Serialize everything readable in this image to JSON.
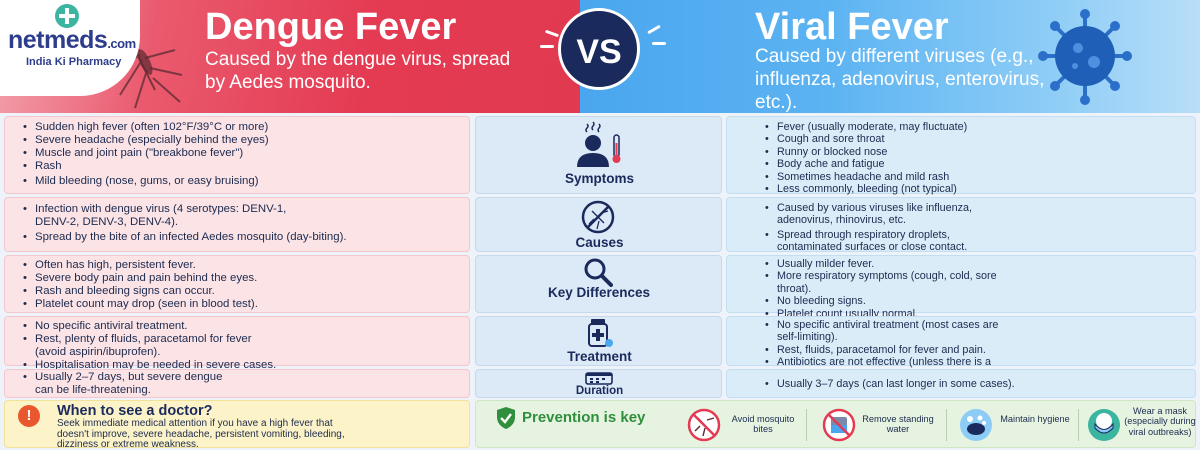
{
  "brand": {
    "name": "netmeds",
    "suffix": ".com",
    "tagline": "India Ki Pharmacy"
  },
  "header": {
    "left_title": "Dengue Fever",
    "left_subtitle": "Caused by the dengue virus, spread by Aedes mosquito.",
    "vs": "VS",
    "right_title": "Viral Fever",
    "right_subtitle": "Caused by different viruses (e.g., influenza, adenovirus, enterovirus, etc.)."
  },
  "colors": {
    "dengue_red": "#e43a52",
    "viral_blue": "#4aa6ee",
    "navy": "#1b2a5c",
    "green": "#2f8f3c"
  },
  "rows": [
    {
      "label": "Symptoms",
      "icon": "person-fever-icon",
      "dengue": [
        "Sudden high fever (often 102°F/39°C or more)",
        "Severe headache (especially behind the eyes)",
        "Muscle and joint pain (\"breakbone fever\")",
        "Rash",
        "Mild bleeding (nose, gums, or easy bruising)"
      ],
      "viral": [
        "Fever (usually moderate, may fluctuate)",
        "Cough and sore throat",
        "Runny or blocked nose",
        "Body ache and fatigue",
        "Sometimes headache and mild rash",
        "Less commonly, bleeding (not typical)"
      ]
    },
    {
      "label": "Causes",
      "icon": "no-mosquito-icon",
      "dengue": [
        "Infection with dengue virus (4 serotypes: DENV-1, DENV-2, DENV-3, DENV-4).",
        "Spread by the bite of an infected Aedes mosquito (day-biting)."
      ],
      "viral": [
        "Caused by various viruses like influenza, adenovirus, rhinovirus, etc.",
        "Spread through respiratory droplets, contaminated surfaces or close contact."
      ]
    },
    {
      "label": "Key Differences",
      "icon": "magnifier-icon",
      "dengue": [
        "Often has high, persistent fever.",
        "Severe body pain and pain behind the eyes.",
        "Rash and bleeding signs can occur.",
        "Platelet count may drop (seen in blood test)."
      ],
      "viral": [
        "Usually milder fever.",
        "More respiratory symptoms (cough, cold, sore throat).",
        "No bleeding signs.",
        "Platelet count usually normal."
      ]
    },
    {
      "label": "Treatment",
      "icon": "medicine-icon",
      "dengue": [
        "No specific antiviral treatment.",
        "Rest, plenty of fluids, paracetamol for fever (avoid aspirin/ibuprofen).",
        "Hospitalisation may be needed in severe cases."
      ],
      "viral": [
        "No specific antiviral treatment (most cases are self-limiting).",
        "Rest, fluids, paracetamol for fever and pain.",
        "Antibiotics are not effective (unless there is a secondary bacterial infection)."
      ]
    },
    {
      "label": "Duration",
      "icon": "calendar-icon",
      "dengue": [
        "Usually 2–7 days, but severe dengue can be life-threatening."
      ],
      "viral": [
        "Usually 3–7 days (can last longer in some cases)."
      ]
    }
  ],
  "doctor": {
    "title": "When to see a doctor?",
    "text": "Seek immediate medical attention if you have a high fever that doesn't improve, severe headache, persistent vomiting, bleeding, dizziness or extreme weakness."
  },
  "prevention": {
    "title": "Prevention is key",
    "items": [
      {
        "label": "Avoid mosquito bites",
        "icon": "no-mosquito-icon"
      },
      {
        "label": "Remove standing water",
        "icon": "no-water-icon"
      },
      {
        "label": "Maintain hygiene",
        "icon": "handwash-icon"
      },
      {
        "label": "Wear a mask (especially during viral outbreaks)",
        "icon": "mask-icon"
      }
    ]
  }
}
